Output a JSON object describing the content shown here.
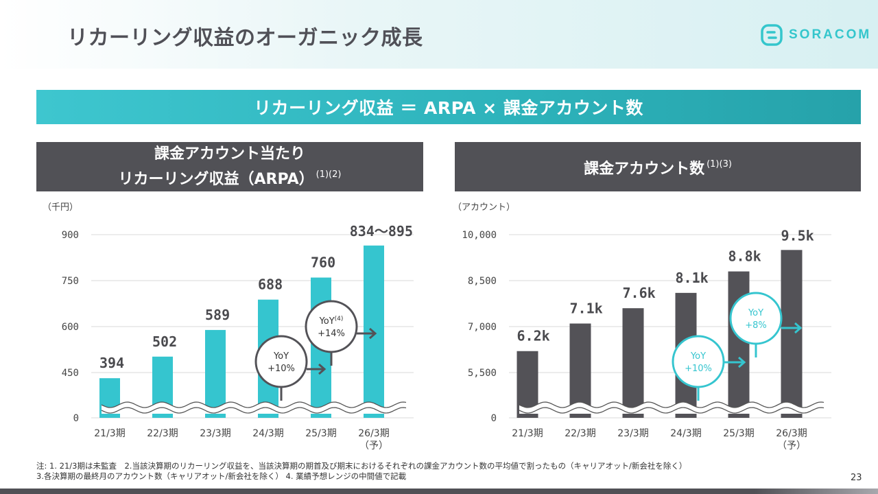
{
  "page": {
    "title": "リカーリング収益のオーガニック成長",
    "logo_text": "SORACOM",
    "formula": "リカーリング収益 ＝ ARPA × 課金アカウント数",
    "page_number": "23",
    "footnote_line1": "注: 1. 21/3期は未監査　2.当該決算期のリカーリング収益を、当該決算期の期首及び期末におけるそれぞれの課金アカウント数の平均値で割ったもの（キャリアオット/新会社を除く）",
    "footnote_line2": "3.各決算期の最終月のアカウント数（キャリアオット/新会社を除く） 4. 業績予想レンジの中間値で記載"
  },
  "left_panel": {
    "title_line1": "課金アカウント当たり",
    "title_line2": "リカーリング収益（ARPA）",
    "title_sup": "(1)(2)",
    "unit": "（千円）"
  },
  "right_panel": {
    "title": "課金アカウント数",
    "title_sup": "(1)(3)",
    "unit": "（アカウント）"
  },
  "colors": {
    "teal": "#35c5cf",
    "dark": "#535257",
    "grid": "#d9d9d9"
  },
  "chart_data": [
    {
      "type": "bar",
      "categories": [
        "21/3期",
        "22/3期",
        "23/3期",
        "24/3期",
        "25/3期",
        "26/3期"
      ],
      "category_sub": [
        "",
        "",
        "",
        "",
        "",
        "（予）"
      ],
      "values": [
        394,
        502,
        589,
        688,
        760,
        864.5
      ],
      "data_labels": [
        "394",
        "502",
        "589",
        "688",
        "760",
        "834～895"
      ],
      "yticks": [
        0,
        450,
        600,
        750,
        900
      ],
      "ytick_labels": [
        "0",
        "450",
        "600",
        "750",
        "900"
      ],
      "axis_break": true,
      "color": "#35c5cf",
      "annotations": [
        {
          "line1": "YoY",
          "line2": "+10%",
          "sup": "",
          "style": "dark"
        },
        {
          "line1": "YoY",
          "line2": "+14%",
          "sup": "(4)",
          "style": "dark"
        }
      ]
    },
    {
      "type": "bar",
      "categories": [
        "21/3期",
        "22/3期",
        "23/3期",
        "24/3期",
        "25/3期",
        "26/3期"
      ],
      "category_sub": [
        "",
        "",
        "",
        "",
        "",
        "（予）"
      ],
      "values": [
        6200,
        7100,
        7600,
        8100,
        8800,
        9500
      ],
      "data_labels": [
        "6.2k",
        "7.1k",
        "7.6k",
        "8.1k",
        "8.8k",
        "9.5k"
      ],
      "yticks": [
        0,
        5500,
        7000,
        8500,
        10000
      ],
      "ytick_labels": [
        "0",
        "5,500",
        "7,000",
        "8,500",
        "10,000"
      ],
      "axis_break": true,
      "color": "#535257",
      "annotations": [
        {
          "line1": "YoY",
          "line2": "+10%",
          "sup": "",
          "style": "teal"
        },
        {
          "line1": "YoY",
          "line2": "+8%",
          "sup": "",
          "style": "teal"
        }
      ]
    }
  ]
}
